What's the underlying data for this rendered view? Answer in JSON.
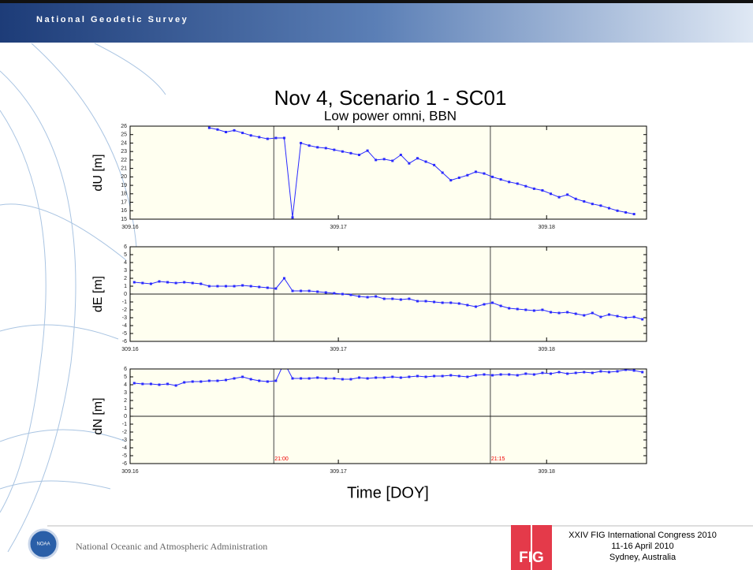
{
  "slide": {
    "header": "National Geodetic Survey",
    "footer_org": "National Oceanic and Atmospheric Administration",
    "logo_left": "NOAA",
    "logo_right": "FIG",
    "conference": [
      "XXIV FIG International Congress 2010",
      "11-16 April 2010",
      "Sydney, Australia"
    ]
  },
  "chart_data": [
    {
      "type": "line",
      "title": "Nov 4, Scenario 1 - SC01",
      "subtitle": "Low power omni, BBN",
      "ylabel": "dU [m]",
      "color": "#2a2aff",
      "background": "#fffff0",
      "xlim": [
        309.16,
        309.1848
      ],
      "xticks": [
        309.16,
        309.17,
        309.18
      ],
      "ylim": [
        15,
        26
      ],
      "yticks": [
        15,
        16,
        17,
        18,
        19,
        20,
        21,
        22,
        23,
        24,
        25,
        26
      ],
      "vlines": [
        309.1669,
        309.1773
      ],
      "x": [
        309.1638,
        309.1642,
        309.1646,
        309.165,
        309.1654,
        309.1658,
        309.1662,
        309.1666,
        309.167,
        309.1674,
        309.1678,
        309.1682,
        309.1686,
        309.169,
        309.1694,
        309.1698,
        309.1702,
        309.1706,
        309.171,
        309.1714,
        309.1718,
        309.1722,
        309.1726,
        309.173,
        309.1734,
        309.1738,
        309.1742,
        309.1746,
        309.175,
        309.1754,
        309.1758,
        309.1762,
        309.1766,
        309.177,
        309.1774,
        309.1778,
        309.1782,
        309.1786,
        309.179,
        309.1794,
        309.1798,
        309.1802,
        309.1806,
        309.181,
        309.1814,
        309.1818,
        309.1822,
        309.1826,
        309.183,
        309.1834,
        309.1838,
        309.1842
      ],
      "series": [
        {
          "values": [
            25.8,
            25.6,
            25.3,
            25.5,
            25.2,
            24.9,
            24.7,
            24.5,
            24.6,
            24.6,
            15.2,
            24.0,
            23.7,
            23.5,
            23.4,
            23.2,
            23.0,
            22.8,
            22.6,
            23.1,
            22.0,
            22.1,
            21.9,
            22.6,
            21.6,
            22.2,
            21.8,
            21.4,
            20.5,
            19.6,
            19.9,
            20.2,
            20.6,
            20.4,
            20.0,
            19.7,
            19.4,
            19.2,
            18.9,
            18.6,
            18.4,
            18.0,
            17.6,
            17.9,
            17.4,
            17.1,
            16.8,
            16.6,
            16.3,
            16.0,
            15.8,
            15.6
          ]
        }
      ]
    },
    {
      "type": "line",
      "ylabel": "dE [m]",
      "color": "#2a2aff",
      "background": "#fffff0",
      "zero_line": true,
      "xlim": [
        309.16,
        309.1848
      ],
      "xticks": [
        309.16,
        309.17,
        309.18
      ],
      "ylim": [
        -6,
        6
      ],
      "yticks": [
        -6,
        -5,
        -4,
        -3,
        -2,
        -1,
        0,
        1,
        2,
        3,
        4,
        5,
        6
      ],
      "vlines": [
        309.1669,
        309.1773
      ],
      "x": [
        309.1602,
        309.1606,
        309.161,
        309.1614,
        309.1618,
        309.1622,
        309.1626,
        309.163,
        309.1634,
        309.1638,
        309.1642,
        309.1646,
        309.165,
        309.1654,
        309.1658,
        309.1662,
        309.1666,
        309.167,
        309.1674,
        309.1678,
        309.1682,
        309.1686,
        309.169,
        309.1694,
        309.1698,
        309.1702,
        309.1706,
        309.171,
        309.1714,
        309.1718,
        309.1722,
        309.1726,
        309.173,
        309.1734,
        309.1738,
        309.1742,
        309.1746,
        309.175,
        309.1754,
        309.1758,
        309.1762,
        309.1766,
        309.177,
        309.1774,
        309.1778,
        309.1782,
        309.1786,
        309.179,
        309.1794,
        309.1798,
        309.1802,
        309.1806,
        309.181,
        309.1814,
        309.1818,
        309.1822,
        309.1826,
        309.183,
        309.1834,
        309.1838,
        309.1842,
        309.1846
      ],
      "series": [
        {
          "values": [
            1.5,
            1.4,
            1.3,
            1.6,
            1.5,
            1.4,
            1.5,
            1.4,
            1.3,
            1.0,
            1.0,
            1.0,
            1.0,
            1.1,
            1.0,
            0.9,
            0.8,
            0.7,
            2.0,
            0.4,
            0.4,
            0.4,
            0.3,
            0.2,
            0.1,
            0.0,
            -0.1,
            -0.3,
            -0.4,
            -0.3,
            -0.6,
            -0.6,
            -0.7,
            -0.6,
            -0.9,
            -0.9,
            -1.0,
            -1.1,
            -1.1,
            -1.2,
            -1.4,
            -1.6,
            -1.3,
            -1.1,
            -1.5,
            -1.8,
            -1.9,
            -2.0,
            -2.1,
            -2.0,
            -2.3,
            -2.4,
            -2.3,
            -2.5,
            -2.7,
            -2.4,
            -2.9,
            -2.6,
            -2.8,
            -3.0,
            -2.9,
            -3.2
          ]
        }
      ]
    },
    {
      "type": "line",
      "ylabel": "dN [m]",
      "xlabel": "Time [DOY]",
      "color": "#2a2aff",
      "background": "#fffff0",
      "zero_line": true,
      "xlim": [
        309.16,
        309.1848
      ],
      "xticks": [
        309.16,
        309.17,
        309.18
      ],
      "ylim": [
        -6,
        6
      ],
      "yticks": [
        -6,
        -5,
        -4,
        -3,
        -2,
        -1,
        0,
        1,
        2,
        3,
        4,
        5,
        6
      ],
      "vlines": [
        309.1669,
        309.1773
      ],
      "annotations": [
        {
          "x": 309.1669,
          "text": "21:00"
        },
        {
          "x": 309.1773,
          "text": "21:15"
        }
      ],
      "x": [
        309.1602,
        309.1606,
        309.161,
        309.1614,
        309.1618,
        309.1622,
        309.1626,
        309.163,
        309.1634,
        309.1638,
        309.1642,
        309.1646,
        309.165,
        309.1654,
        309.1658,
        309.1662,
        309.1666,
        309.167,
        309.1674,
        309.1678,
        309.1682,
        309.1686,
        309.169,
        309.1694,
        309.1698,
        309.1702,
        309.1706,
        309.171,
        309.1714,
        309.1718,
        309.1722,
        309.1726,
        309.173,
        309.1734,
        309.1738,
        309.1742,
        309.1746,
        309.175,
        309.1754,
        309.1758,
        309.1762,
        309.1766,
        309.177,
        309.1774,
        309.1778,
        309.1782,
        309.1786,
        309.179,
        309.1794,
        309.1798,
        309.1802,
        309.1806,
        309.181,
        309.1814,
        309.1818,
        309.1822,
        309.1826,
        309.183,
        309.1834,
        309.1838,
        309.1842,
        309.1846
      ],
      "series": [
        {
          "values": [
            4.2,
            4.1,
            4.1,
            4.0,
            4.1,
            3.9,
            4.3,
            4.4,
            4.4,
            4.5,
            4.5,
            4.6,
            4.8,
            5.0,
            4.7,
            4.5,
            4.4,
            4.5,
            6.8,
            4.8,
            4.8,
            4.8,
            4.9,
            4.8,
            4.8,
            4.7,
            4.7,
            4.9,
            4.8,
            4.9,
            4.9,
            5.0,
            4.9,
            5.0,
            5.1,
            5.0,
            5.1,
            5.1,
            5.2,
            5.1,
            5.0,
            5.2,
            5.3,
            5.2,
            5.3,
            5.3,
            5.2,
            5.4,
            5.3,
            5.5,
            5.4,
            5.6,
            5.4,
            5.5,
            5.6,
            5.5,
            5.7,
            5.6,
            5.7,
            5.9,
            5.8,
            5.6
          ]
        }
      ]
    }
  ]
}
